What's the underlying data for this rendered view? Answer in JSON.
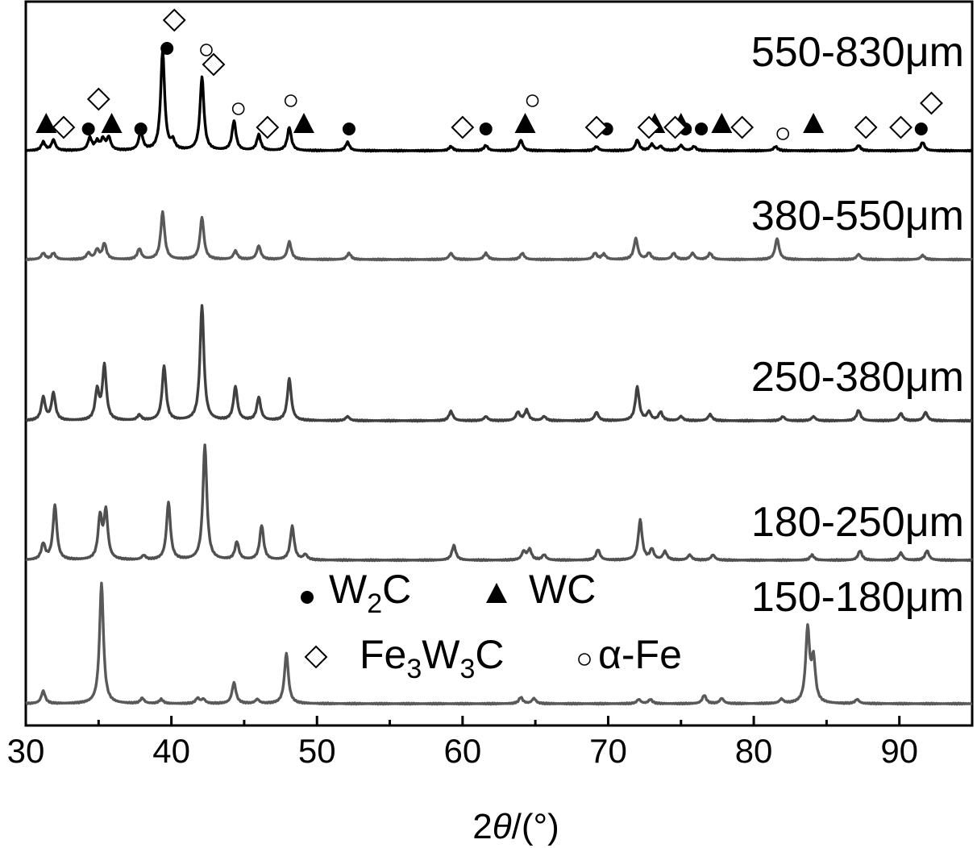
{
  "chart_data": {
    "type": "line",
    "title": "",
    "xlabel": "2θ/(°)",
    "ylabel": "",
    "xlim": [
      30,
      95
    ],
    "x_ticks": [
      30,
      40,
      50,
      60,
      70,
      80,
      90
    ],
    "y_ticks_shown": false,
    "grid": false,
    "stacked_offsets": true,
    "series": [
      {
        "name": "550-830μm",
        "color": "#000000",
        "baseline": 0,
        "peaks": [
          [
            31.2,
            0.08
          ],
          [
            31.9,
            0.1
          ],
          [
            34.4,
            0.12
          ],
          [
            34.9,
            0.08
          ],
          [
            35.3,
            0.1
          ],
          [
            35.7,
            0.12
          ],
          [
            37.9,
            0.18
          ],
          [
            39.4,
            0.95
          ],
          [
            40.1,
            0.08
          ],
          [
            42.1,
            0.7
          ],
          [
            44.3,
            0.28
          ],
          [
            46.0,
            0.15
          ],
          [
            48.1,
            0.22
          ],
          [
            52.1,
            0.08
          ],
          [
            59.2,
            0.04
          ],
          [
            61.6,
            0.05
          ],
          [
            64.0,
            0.1
          ],
          [
            69.2,
            0.04
          ],
          [
            72.0,
            0.1
          ],
          [
            73.0,
            0.06
          ],
          [
            73.6,
            0.04
          ],
          [
            75.0,
            0.05
          ],
          [
            75.9,
            0.04
          ],
          [
            81.5,
            0.04
          ],
          [
            87.2,
            0.05
          ],
          [
            91.6,
            0.08
          ]
        ],
        "markers": [
          {
            "type": "W2C",
            "x": [
              34.3,
              37.9,
              39.7,
              52.2,
              61.6,
              69.9,
              75.3,
              76.4,
              91.5
            ]
          },
          {
            "type": "WC",
            "x": [
              31.4,
              35.9,
              49.1,
              64.3,
              73.2,
              75.0,
              77.8,
              84.1
            ]
          },
          {
            "type": "Fe3W3C",
            "x": [
              32.6,
              35.0,
              40.2,
              42.9,
              46.6,
              60.0,
              69.2,
              72.8,
              74.6,
              79.2,
              87.7,
              90.1,
              92.2
            ]
          },
          {
            "type": "alpha-Fe",
            "x": [
              42.4,
              44.6,
              48.2,
              64.8,
              82.0
            ]
          }
        ]
      },
      {
        "name": "380-550μm",
        "color": "#595959",
        "baseline": 1,
        "peaks": [
          [
            31.2,
            0.06
          ],
          [
            31.9,
            0.06
          ],
          [
            34.3,
            0.06
          ],
          [
            34.9,
            0.09
          ],
          [
            35.4,
            0.15
          ],
          [
            37.8,
            0.1
          ],
          [
            39.4,
            0.45
          ],
          [
            42.1,
            0.4
          ],
          [
            44.4,
            0.08
          ],
          [
            46.0,
            0.13
          ],
          [
            48.1,
            0.17
          ],
          [
            52.2,
            0.06
          ],
          [
            59.2,
            0.06
          ],
          [
            61.6,
            0.06
          ],
          [
            64.1,
            0.06
          ],
          [
            69.1,
            0.06
          ],
          [
            69.7,
            0.05
          ],
          [
            71.9,
            0.2
          ],
          [
            72.8,
            0.06
          ],
          [
            74.5,
            0.06
          ],
          [
            75.8,
            0.06
          ],
          [
            77.0,
            0.06
          ],
          [
            81.6,
            0.2
          ],
          [
            87.2,
            0.05
          ],
          [
            91.6,
            0.04
          ]
        ]
      },
      {
        "name": "250-380μm",
        "color": "#404040",
        "baseline": 2,
        "peaks": [
          [
            31.2,
            0.22
          ],
          [
            31.9,
            0.26
          ],
          [
            34.9,
            0.28
          ],
          [
            35.4,
            0.52
          ],
          [
            37.8,
            0.05
          ],
          [
            39.5,
            0.52
          ],
          [
            42.1,
            1.1
          ],
          [
            44.4,
            0.32
          ],
          [
            46.0,
            0.22
          ],
          [
            48.1,
            0.4
          ],
          [
            52.1,
            0.04
          ],
          [
            59.2,
            0.09
          ],
          [
            61.6,
            0.04
          ],
          [
            63.8,
            0.08
          ],
          [
            64.4,
            0.1
          ],
          [
            65.6,
            0.04
          ],
          [
            69.2,
            0.08
          ],
          [
            72.0,
            0.32
          ],
          [
            72.8,
            0.08
          ],
          [
            73.6,
            0.08
          ],
          [
            75.0,
            0.04
          ],
          [
            77.0,
            0.06
          ],
          [
            82.0,
            0.04
          ],
          [
            84.1,
            0.04
          ],
          [
            87.2,
            0.1
          ],
          [
            90.1,
            0.07
          ],
          [
            91.8,
            0.08
          ]
        ]
      },
      {
        "name": "180-250μm",
        "color": "#505050",
        "baseline": 3,
        "peaks": [
          [
            31.2,
            0.15
          ],
          [
            32.0,
            0.52
          ],
          [
            35.1,
            0.4
          ],
          [
            35.5,
            0.45
          ],
          [
            38.1,
            0.04
          ],
          [
            39.8,
            0.55
          ],
          [
            42.3,
            1.1
          ],
          [
            44.5,
            0.17
          ],
          [
            46.2,
            0.33
          ],
          [
            48.3,
            0.32
          ],
          [
            49.2,
            0.05
          ],
          [
            59.4,
            0.14
          ],
          [
            64.2,
            0.08
          ],
          [
            64.6,
            0.1
          ],
          [
            65.6,
            0.05
          ],
          [
            69.3,
            0.1
          ],
          [
            72.2,
            0.38
          ],
          [
            73.0,
            0.1
          ],
          [
            73.9,
            0.08
          ],
          [
            75.6,
            0.05
          ],
          [
            77.2,
            0.05
          ],
          [
            84.0,
            0.05
          ],
          [
            87.3,
            0.09
          ],
          [
            90.1,
            0.07
          ],
          [
            91.9,
            0.09
          ]
        ]
      },
      {
        "name": "150-180μm",
        "color": "#595959",
        "baseline": 4,
        "peaks": [
          [
            31.2,
            0.12
          ],
          [
            35.2,
            1.15
          ],
          [
            38.0,
            0.05
          ],
          [
            39.3,
            0.04
          ],
          [
            41.8,
            0.05
          ],
          [
            42.2,
            0.04
          ],
          [
            44.3,
            0.2
          ],
          [
            45.9,
            0.04
          ],
          [
            47.9,
            0.48
          ],
          [
            64.0,
            0.06
          ],
          [
            64.9,
            0.05
          ],
          [
            72.1,
            0.04
          ],
          [
            72.9,
            0.04
          ],
          [
            76.6,
            0.08
          ],
          [
            77.8,
            0.05
          ],
          [
            81.9,
            0.04
          ],
          [
            83.7,
            0.7
          ],
          [
            84.1,
            0.4
          ],
          [
            87.1,
            0.04
          ]
        ]
      }
    ],
    "legend": {
      "placement": "bottom-center",
      "entries": [
        {
          "key": "W2C",
          "symbol": "filled-circle",
          "text": "W",
          "sub": "2",
          "tail": "C"
        },
        {
          "key": "WC",
          "symbol": "filled-triangle",
          "text": "WC"
        },
        {
          "key": "Fe3W3C",
          "symbol": "open-diamond",
          "text": "Fe",
          "sub": "3",
          "mid": "W",
          "sub2": "3",
          "tail": "C"
        },
        {
          "key": "alpha-Fe",
          "symbol": "open-circle",
          "text": "α-Fe"
        }
      ]
    }
  }
}
